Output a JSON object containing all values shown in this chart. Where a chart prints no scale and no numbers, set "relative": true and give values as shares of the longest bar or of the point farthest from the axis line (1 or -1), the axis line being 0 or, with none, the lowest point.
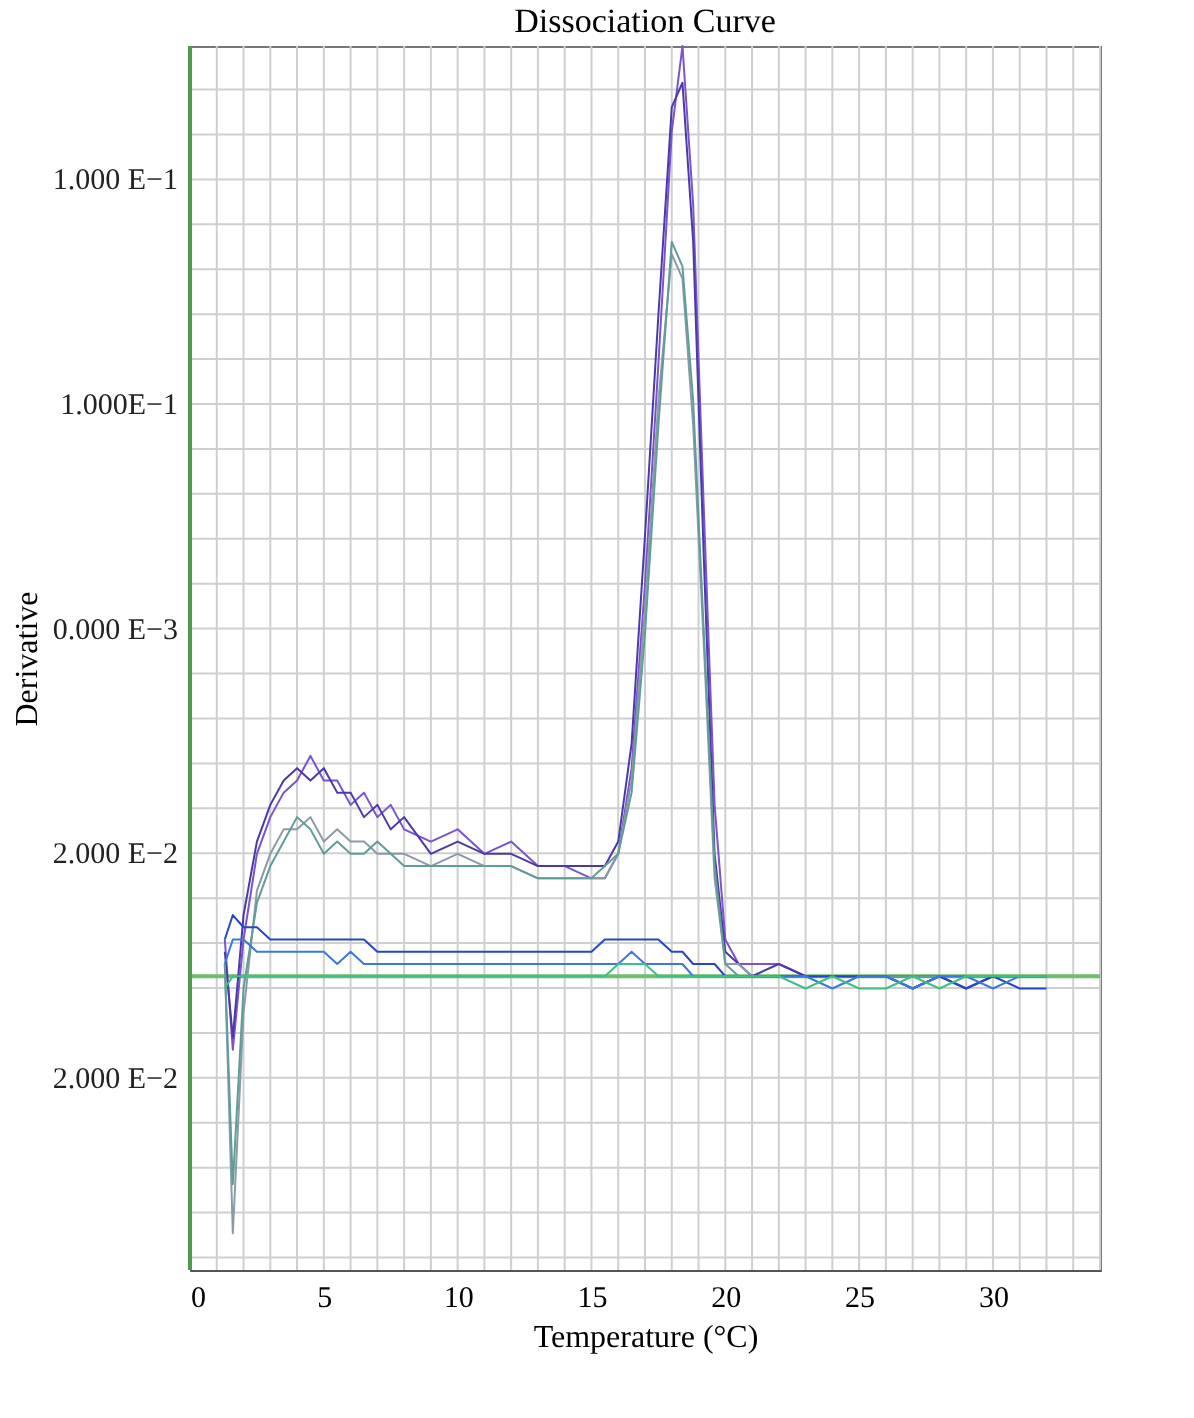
{
  "chart_data": {
    "type": "line",
    "title": "Dissociation Curve",
    "xlabel": "Temperature (°C)",
    "ylabel": "Derivative",
    "relative": true,
    "annotations": [
      "1.000 E−1",
      "1.000E−1",
      "0.000 E−3",
      "2.000 E−2",
      "2.000 E−2"
    ],
    "xlim": [
      0,
      34
    ],
    "xticks": [
      0,
      5,
      10,
      15,
      20,
      25,
      30
    ],
    "grid": true,
    "legend": false,
    "line_style": "solid",
    "marker": "none",
    "ref_lines": [
      {
        "axis": "y",
        "value": 0.24,
        "color": "#6cbf6c"
      },
      {
        "axis": "x",
        "value": 0,
        "color": "#4f9a4f"
      }
    ],
    "x": [
      1.3,
      1.6,
      2,
      2.5,
      3,
      3.5,
      4,
      4.5,
      5,
      5.5,
      6,
      6.5,
      7,
      7.5,
      8,
      9,
      10,
      11,
      12,
      13,
      14,
      15,
      15.5,
      16,
      16.5,
      17,
      17.5,
      18,
      18.4,
      18.8,
      19.2,
      19.6,
      20,
      20.5,
      21,
      22,
      23,
      24,
      25,
      26,
      27,
      28,
      29,
      30,
      31,
      32
    ],
    "series": [
      {
        "color": "#7b52d0",
        "values": [
          0.27,
          0.18,
          0.27,
          0.34,
          0.37,
          0.39,
          0.4,
          0.42,
          0.4,
          0.4,
          0.38,
          0.39,
          0.37,
          0.38,
          0.36,
          0.35,
          0.36,
          0.34,
          0.35,
          0.33,
          0.33,
          0.32,
          0.32,
          0.34,
          0.41,
          0.56,
          0.74,
          0.93,
          1.0,
          0.87,
          0.62,
          0.38,
          0.27,
          0.25,
          0.25,
          0.25,
          0.24,
          0.24,
          0.24,
          0.24,
          0.23,
          0.24,
          0.24,
          0.24,
          0.24,
          0.24
        ]
      },
      {
        "color": "#4a3aa8",
        "values": [
          0.26,
          0.19,
          0.29,
          0.35,
          0.38,
          0.4,
          0.41,
          0.4,
          0.41,
          0.39,
          0.39,
          0.37,
          0.38,
          0.36,
          0.37,
          0.34,
          0.35,
          0.34,
          0.34,
          0.33,
          0.33,
          0.33,
          0.33,
          0.35,
          0.43,
          0.6,
          0.78,
          0.95,
          0.97,
          0.84,
          0.58,
          0.34,
          0.26,
          0.25,
          0.24,
          0.25,
          0.24,
          0.24,
          0.24,
          0.24,
          0.24,
          0.24,
          0.23,
          0.24,
          0.24,
          0.24
        ]
      },
      {
        "color": "#8c9aa8",
        "values": [
          0.25,
          0.03,
          0.21,
          0.31,
          0.34,
          0.36,
          0.36,
          0.37,
          0.35,
          0.36,
          0.35,
          0.35,
          0.34,
          0.34,
          0.34,
          0.33,
          0.34,
          0.33,
          0.33,
          0.32,
          0.32,
          0.32,
          0.32,
          0.34,
          0.4,
          0.54,
          0.71,
          0.83,
          0.81,
          0.69,
          0.51,
          0.32,
          0.25,
          0.25,
          0.24,
          0.24,
          0.24,
          0.24,
          0.24,
          0.24,
          0.23,
          0.24,
          0.24,
          0.24,
          0.24,
          0.24
        ]
      },
      {
        "color": "#5f9e98",
        "values": [
          0.25,
          0.07,
          0.23,
          0.3,
          0.33,
          0.35,
          0.37,
          0.36,
          0.34,
          0.35,
          0.34,
          0.34,
          0.35,
          0.34,
          0.33,
          0.33,
          0.33,
          0.33,
          0.33,
          0.32,
          0.32,
          0.32,
          0.33,
          0.34,
          0.39,
          0.52,
          0.69,
          0.84,
          0.82,
          0.71,
          0.52,
          0.33,
          0.25,
          0.24,
          0.24,
          0.24,
          0.24,
          0.24,
          0.24,
          0.24,
          0.24,
          0.24,
          0.24,
          0.24,
          0.24,
          0.24
        ]
      },
      {
        "color": "#2646c8",
        "values": [
          0.27,
          0.29,
          0.28,
          0.28,
          0.27,
          0.27,
          0.27,
          0.27,
          0.27,
          0.27,
          0.27,
          0.27,
          0.26,
          0.26,
          0.26,
          0.26,
          0.26,
          0.26,
          0.26,
          0.26,
          0.26,
          0.26,
          0.27,
          0.27,
          0.27,
          0.27,
          0.27,
          0.26,
          0.26,
          0.25,
          0.25,
          0.25,
          0.24,
          0.24,
          0.24,
          0.24,
          0.24,
          0.24,
          0.24,
          0.24,
          0.23,
          0.24,
          0.23,
          0.24,
          0.23,
          0.23
        ]
      },
      {
        "color": "#3a78e0",
        "values": [
          0.25,
          0.27,
          0.27,
          0.26,
          0.26,
          0.26,
          0.26,
          0.26,
          0.26,
          0.25,
          0.26,
          0.25,
          0.25,
          0.25,
          0.25,
          0.25,
          0.25,
          0.25,
          0.25,
          0.25,
          0.25,
          0.25,
          0.25,
          0.25,
          0.26,
          0.25,
          0.25,
          0.25,
          0.25,
          0.24,
          0.24,
          0.24,
          0.24,
          0.24,
          0.24,
          0.24,
          0.24,
          0.23,
          0.24,
          0.24,
          0.23,
          0.24,
          0.24,
          0.23,
          0.24,
          0.24
        ]
      },
      {
        "color": "#3fbf86",
        "values": [
          0.23,
          0.24,
          0.24,
          0.24,
          0.24,
          0.24,
          0.24,
          0.24,
          0.24,
          0.24,
          0.24,
          0.24,
          0.24,
          0.24,
          0.24,
          0.24,
          0.24,
          0.24,
          0.24,
          0.24,
          0.24,
          0.24,
          0.24,
          0.25,
          0.25,
          0.25,
          0.24,
          0.24,
          0.24,
          0.24,
          0.24,
          0.24,
          0.24,
          0.24,
          0.24,
          0.24,
          0.23,
          0.24,
          0.23,
          0.23,
          0.24,
          0.23,
          0.24,
          0.24,
          0.24,
          0.24
        ]
      }
    ]
  }
}
